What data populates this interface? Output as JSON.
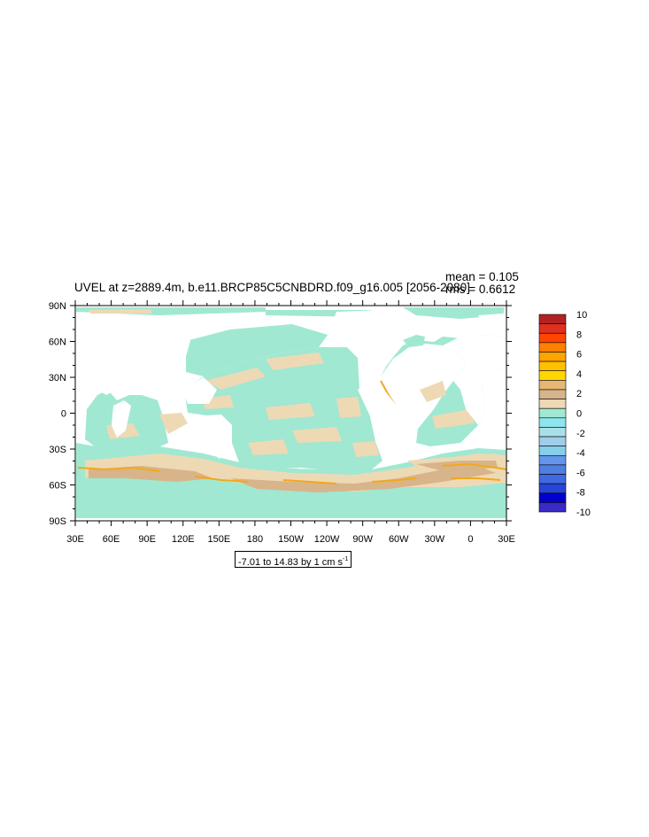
{
  "map": {
    "title": "UVEL at z=2889.4m, b.e11.BRCP85C5CNBDRD.f09_g16.005 [2056-2080]",
    "mean_label": "mean = 0.105",
    "rms_label": "rms = 0.6612",
    "contour_info": {
      "text": "-7.01 to 14.83 by 1 cm s",
      "exponent": "-1"
    },
    "lat_ticks": [
      "90N",
      "60N",
      "30N",
      "0",
      "30S",
      "60S",
      "90S"
    ],
    "lon_ticks": [
      "30E",
      "60E",
      "90E",
      "120E",
      "150E",
      "180",
      "150W",
      "120W",
      "90W",
      "60W",
      "30W",
      "0",
      "30E"
    ],
    "colors": {
      "land": "#ffffff",
      "near_zero_negative": "#a0e8d2",
      "near_zero_positive": "#eed9b5",
      "positive_2_3": "#d8b48a",
      "jets": "#f2a81c"
    }
  },
  "colorbar": {
    "labels": [
      "10",
      "8",
      "6",
      "4",
      "2",
      "0",
      "-2",
      "-4",
      "-6",
      "-8",
      "-10"
    ],
    "colors": [
      "#b22222",
      "#e0301e",
      "#ff4500",
      "#ff7f00",
      "#ffa500",
      "#ffc000",
      "#ffd700",
      "#e6b874",
      "#d8b48a",
      "#eed9b5",
      "#a0e8d2",
      "#8ee5ee",
      "#a9e0e8",
      "#a2cdea",
      "#87ceeb",
      "#6495ed",
      "#4f7fe3",
      "#4169e1",
      "#2646d8",
      "#0000cd",
      "#3a2bc8"
    ]
  }
}
